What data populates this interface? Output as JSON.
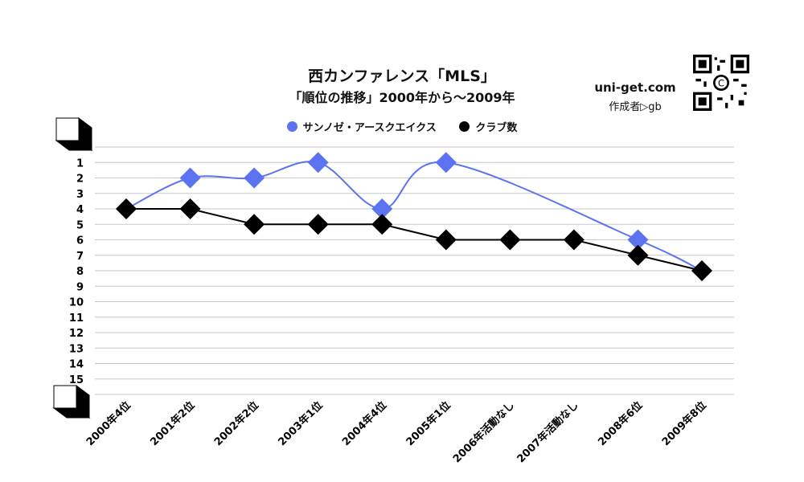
{
  "header": {
    "title": "西カンファレンス「MLS」",
    "subtitle": "「順位の推移」2000年から～2009年",
    "site": "uni-get.com",
    "author": "作成者▷gb"
  },
  "colors": {
    "series_1": "#5b73f0",
    "series_2": "#000000",
    "grid": "#c8c8c8"
  },
  "chart_data": {
    "type": "line",
    "title": "西カンファレンス「MLS」",
    "subtitle": "「順位の推移」2000年から～2009年",
    "categories": [
      "2000年4位",
      "2001年2位",
      "2002年2位",
      "2003年1位",
      "2004年4位",
      "2005年1位",
      "2006年活動なし",
      "2007年活動なし",
      "2008年6位",
      "2009年8位"
    ],
    "y_ticks": [
      1,
      2,
      3,
      4,
      5,
      6,
      7,
      8,
      9,
      10,
      11,
      12,
      13,
      14,
      15
    ],
    "ylim": [
      0,
      16
    ],
    "y_inverted": true,
    "grid": true,
    "legend_position": "top",
    "series": [
      {
        "name": "サンノゼ・アースクエイクス",
        "marker": "diamond",
        "smooth": true,
        "values": [
          4,
          2,
          2,
          1,
          4,
          1,
          null,
          null,
          6,
          8
        ]
      },
      {
        "name": "クラブ数",
        "marker": "diamond",
        "values": [
          4,
          4,
          5,
          5,
          5,
          6,
          6,
          6,
          7,
          8
        ]
      }
    ]
  }
}
